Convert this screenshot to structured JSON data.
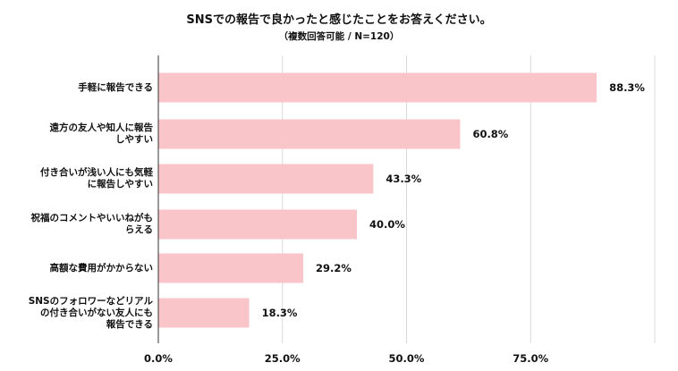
{
  "chart_data": {
    "type": "bar",
    "orientation": "horizontal",
    "title": "SNSでの報告で良かったと感じたことをお答えください。",
    "subtitle": "（複数回答可能 / N=120）",
    "categories": [
      "手軽に報告できる",
      "遠方の友人や知人に報告\nしやすい",
      "付き合いが浅い人にも気軽\nに報告しやすい",
      "祝福のコメントやいいねがも\nらえる",
      "高額な費用がかからない",
      "SNSのフォロワーなどリアル\nの付き合いがない友人にも\n報告できる"
    ],
    "values": [
      88.3,
      60.8,
      43.3,
      40.0,
      29.2,
      18.3
    ],
    "value_labels": [
      "88.3%",
      "60.8%",
      "43.3%",
      "40.0%",
      "29.2%",
      "18.3%"
    ],
    "xlim": [
      0,
      100
    ],
    "xticks": [
      0,
      25,
      50,
      75
    ],
    "xtick_labels": [
      "0.0%",
      "25.0%",
      "50.0%",
      "75.0%"
    ],
    "grid": true,
    "bar_color": "#f9c5c8",
    "grid_color": "#d9d9d9",
    "axis_color": "#333333"
  }
}
